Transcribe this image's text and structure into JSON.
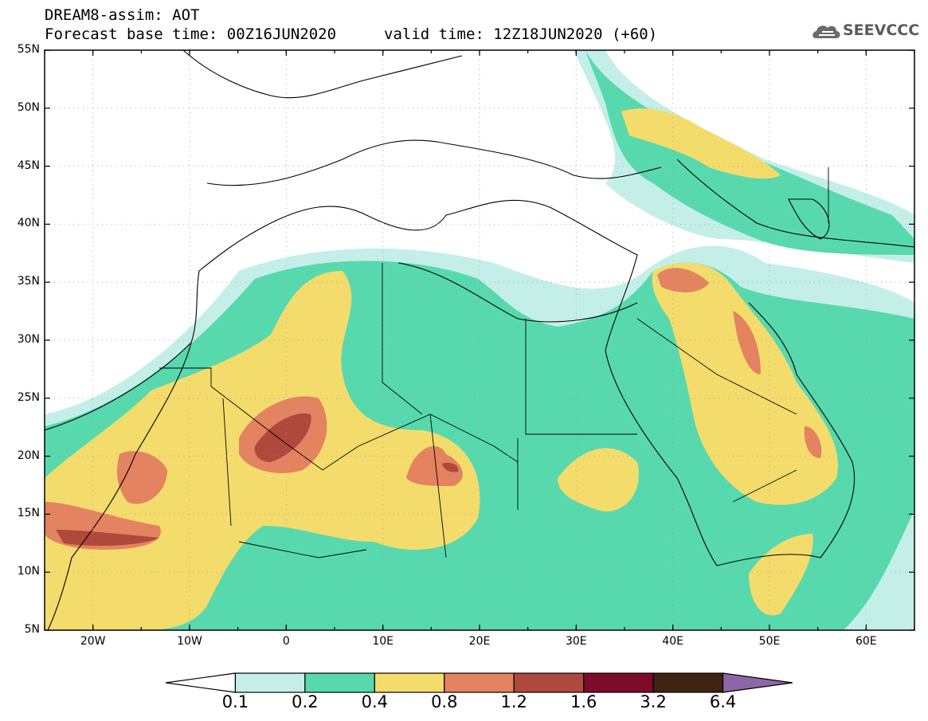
{
  "header": {
    "title": "DREAM8-assim: AOT",
    "base_time": "Forecast base time: 00Z16JUN2020",
    "valid_time": "valid time: 12Z18JUN2020 (+60)",
    "logo_text": "SEEVCCC"
  },
  "map": {
    "lat_labels": [
      "55N",
      "50N",
      "45N",
      "40N",
      "35N",
      "30N",
      "25N",
      "20N",
      "15N",
      "10N",
      "5N"
    ],
    "lon_labels": [
      "20W",
      "10W",
      "0",
      "10E",
      "20E",
      "30E",
      "40E",
      "50E",
      "60E"
    ],
    "lon_range": [
      -25,
      65
    ],
    "lat_range": [
      5,
      55
    ]
  },
  "colorbar": {
    "labels": [
      "0.1",
      "0.2",
      "0.4",
      "0.8",
      "1.2",
      "1.6",
      "3.2",
      "6.4"
    ],
    "colors": [
      "#ffffff",
      "#c4efe8",
      "#58d9ad",
      "#f4dc6c",
      "#e3835f",
      "#b0483c",
      "#7e0b2a",
      "#3d2412",
      "#8e66a8"
    ]
  }
}
